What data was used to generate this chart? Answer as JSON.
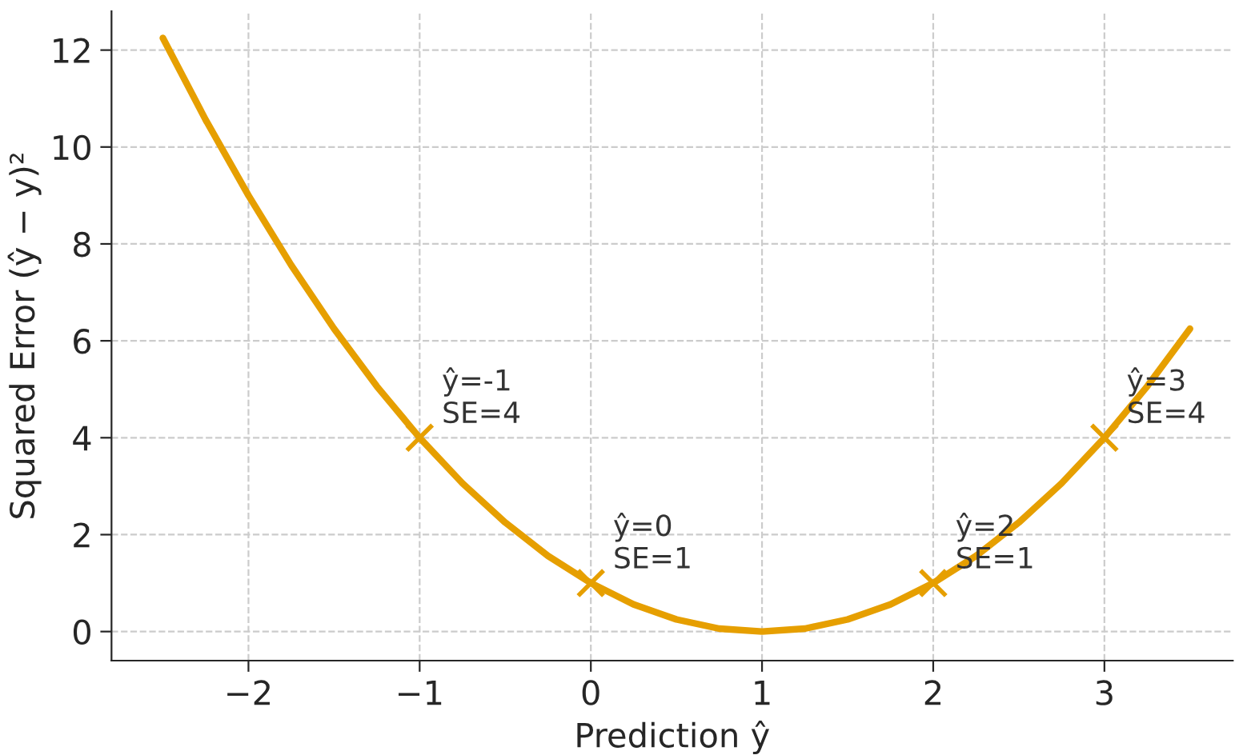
{
  "chart_data": {
    "type": "line",
    "xlabel": "Prediction ŷ",
    "ylabel": "Squared Error (ŷ − y)²",
    "xlim": [
      -2.8,
      3.75
    ],
    "ylim": [
      -0.6,
      12.8
    ],
    "xticks": [
      -2,
      -1,
      0,
      1,
      2,
      3
    ],
    "yticks": [
      0,
      2,
      4,
      6,
      8,
      10,
      12
    ],
    "grid": true,
    "legend": false,
    "series": [
      {
        "color": "#e69f00",
        "marker": "none",
        "x": [
          -2.5,
          -2.25,
          -2,
          -1.75,
          -1.5,
          -1.25,
          -1,
          -0.75,
          -0.5,
          -0.25,
          0,
          0.25,
          0.5,
          0.75,
          1,
          1.25,
          1.5,
          1.75,
          2,
          2.25,
          2.5,
          2.75,
          3,
          3.25,
          3.5
        ],
        "values": [
          12.25,
          10.56,
          9,
          7.56,
          6.25,
          5.06,
          4,
          3.06,
          2.25,
          1.56,
          1,
          0.56,
          0.25,
          0.06,
          0,
          0.06,
          0.25,
          0.56,
          1,
          1.56,
          2.25,
          3.06,
          4,
          5.06,
          6.25
        ]
      },
      {
        "type": "scatter",
        "color": "#e69f00",
        "marker": "cross",
        "x": [
          -1,
          0,
          2,
          3
        ],
        "values": [
          4,
          1,
          1,
          4
        ]
      }
    ],
    "annotations": [
      {
        "text": "ŷ=-1\nSE=4",
        "x": -1,
        "y": 4
      },
      {
        "text": "ŷ=0\nSE=1",
        "x": 0,
        "y": 1
      },
      {
        "text": "ŷ=2\nSE=1",
        "x": 2,
        "y": 1
      },
      {
        "text": "ŷ=3\nSE=4",
        "x": 3,
        "y": 4
      }
    ]
  }
}
